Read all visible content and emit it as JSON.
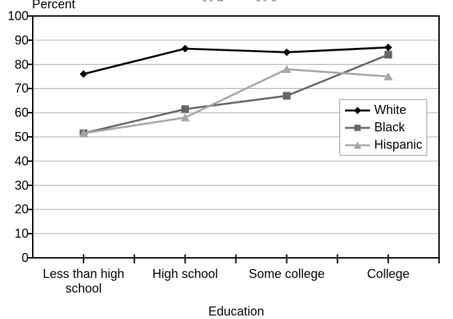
{
  "chart_data": {
    "type": "line",
    "ylabel": "Percent",
    "xlabel": "Education",
    "categories": [
      "Less than high school",
      "High school",
      "Some college",
      "College"
    ],
    "series": [
      {
        "name": "White",
        "marker": "diamond",
        "color": "#000000",
        "values": [
          76,
          86.5,
          85,
          87
        ]
      },
      {
        "name": "Black",
        "marker": "square",
        "color": "#666666",
        "values": [
          51.5,
          61.5,
          67,
          84
        ]
      },
      {
        "name": "Hispanic",
        "marker": "triangle",
        "color": "#a6a6a6",
        "values": [
          51.5,
          58,
          78,
          75
        ]
      }
    ],
    "ylim": [
      0,
      100
    ],
    "y_ticks": [
      0,
      10,
      20,
      30,
      40,
      50,
      60,
      70,
      80,
      90,
      100
    ],
    "grid": true,
    "gridline_color": "#b3b3b3",
    "axis_color": "#000000",
    "legend_position": "middle-right",
    "note": "chart title cropped out of frame at top edge"
  }
}
